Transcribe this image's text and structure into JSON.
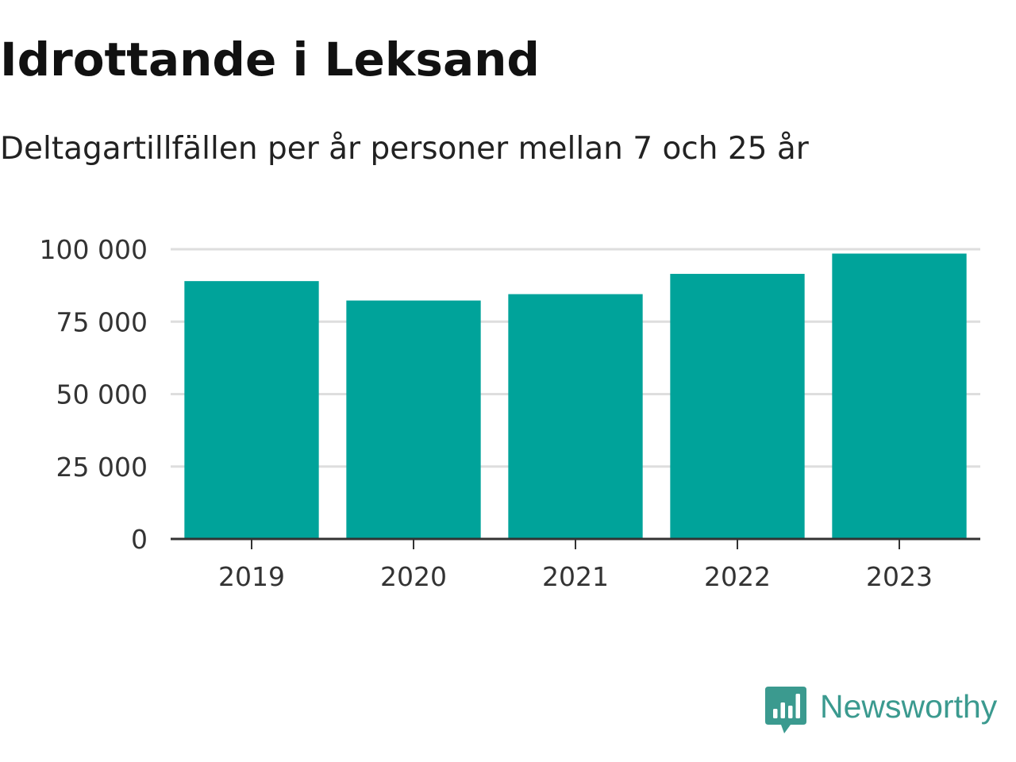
{
  "header": {
    "title": "Idrottande i Leksand",
    "subtitle": "Deltagartillfällen per år personer mellan 7 och 25 år"
  },
  "colors": {
    "bar": "#00a39a",
    "gridline": "#dedede",
    "axis": "#333333",
    "brand": "#3b9a8f"
  },
  "chart_data": {
    "type": "bar",
    "categories": [
      "2019",
      "2020",
      "2021",
      "2022",
      "2023"
    ],
    "values": [
      89000,
      82300,
      84500,
      91500,
      98500
    ],
    "ylim": [
      0,
      100000
    ],
    "yticks": [
      0,
      25000,
      50000,
      75000,
      100000
    ],
    "ytick_labels": [
      "0",
      "25 000",
      "50 000",
      "75 000",
      "100 000"
    ],
    "grid": true,
    "legend": "none"
  },
  "branding": {
    "name": "Newsworthy",
    "icon": "newsworthy-logo-icon"
  }
}
